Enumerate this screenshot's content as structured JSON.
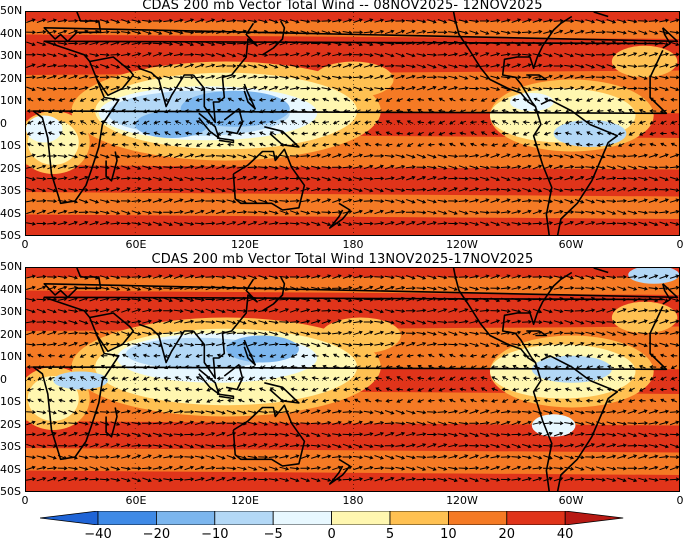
{
  "panels": [
    {
      "title": "CDAS 200 mb Vector Total Wind -- 08NOV2025- 12NOV2025",
      "lat_labels": [
        "50N",
        "40N",
        "30N",
        "20N",
        "10N",
        "0",
        "10S",
        "20S",
        "30S",
        "40S",
        "50S"
      ],
      "lon_labels": [
        "0",
        "60E",
        "120E",
        "180",
        "120W",
        "60W",
        "0"
      ]
    },
    {
      "title": "CDAS 200 mb Vector Total Wind 13NOV2025-17NOV2025",
      "lat_labels": [
        "50N",
        "40N",
        "30N",
        "20N",
        "10N",
        "0",
        "10S",
        "20S",
        "30S",
        "40S",
        "50S"
      ],
      "lon_labels": [
        "0",
        "60E",
        "120E",
        "180",
        "120W",
        "60W",
        "0"
      ]
    }
  ],
  "colorbar": {
    "labels": [
      "−40",
      "−20",
      "−10",
      "−5",
      "0",
      "5",
      "10",
      "20",
      "40"
    ],
    "colors": [
      "#1f64d6",
      "#3f8ae6",
      "#7cb6ee",
      "#b3d8f6",
      "#e8f8ff",
      "#fff7b0",
      "#ffc152",
      "#f57a24",
      "#e0341a",
      "#b81a14"
    ]
  },
  "icons": [
    "wind-vector-arrow-icon",
    "coastline-outline"
  ]
}
